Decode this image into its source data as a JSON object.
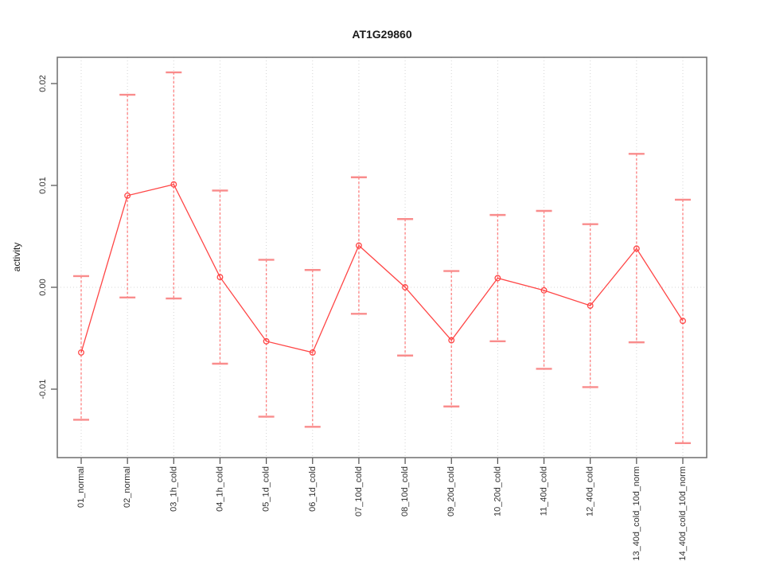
{
  "figure": {
    "title": "AT1G29860",
    "ylabel": "activity",
    "xlabel": ""
  },
  "chart_data": {
    "type": "line",
    "title": "AT1G29860",
    "xlabel": "",
    "ylabel": "activity",
    "legend": "none",
    "grid": "dotted vertical gridline at each category; dotted horizontal line at y=0",
    "error_bars": true,
    "categories": [
      "01_normal",
      "02_normal",
      "03_1h_cold",
      "04_1h_cold",
      "05_1d_cold",
      "06_1d_cold",
      "07_10d_cold",
      "08_10d_cold",
      "09_20d_cold",
      "10_20d_cold",
      "11_40d_cold",
      "12_40d_cold",
      "13_40d_cold_10d_norm",
      "14_40d_cold_10d_norm"
    ],
    "series": [
      {
        "name": "activity",
        "values": [
          -0.0064,
          0.009,
          0.0101,
          0.001,
          -0.0053,
          -0.0064,
          0.0041,
          0.0,
          -0.0052,
          0.0009,
          -0.0003,
          -0.0018,
          0.0038,
          -0.0033
        ],
        "error_upper": [
          0.0011,
          0.0189,
          0.0211,
          0.0095,
          0.0027,
          0.0017,
          0.0108,
          0.0067,
          0.0016,
          0.0071,
          0.0075,
          0.0062,
          0.0131,
          0.0086
        ],
        "error_lower": [
          -0.013,
          -0.001,
          -0.0011,
          -0.0075,
          -0.0127,
          -0.0137,
          -0.0026,
          -0.0067,
          -0.0117,
          -0.0053,
          -0.008,
          -0.0098,
          -0.0054,
          -0.0153
        ]
      }
    ],
    "yticks": [
      -0.01,
      0.0,
      0.01,
      0.02
    ],
    "ytick_labels": [
      "-0.01",
      "0.00",
      "0.01",
      "0.02"
    ],
    "ylim": [
      -0.0167,
      0.0226
    ],
    "colors": {
      "series_line": "#ff4646",
      "marker": "#ff4646",
      "error_line": "#ff6b6b",
      "error_cap": "#f98c8c",
      "grid": "#d4d4d4",
      "box": "#6e6e6e",
      "tick": "#4d4d4d",
      "text": "#1a1a1a",
      "background": "#ffffff"
    }
  }
}
